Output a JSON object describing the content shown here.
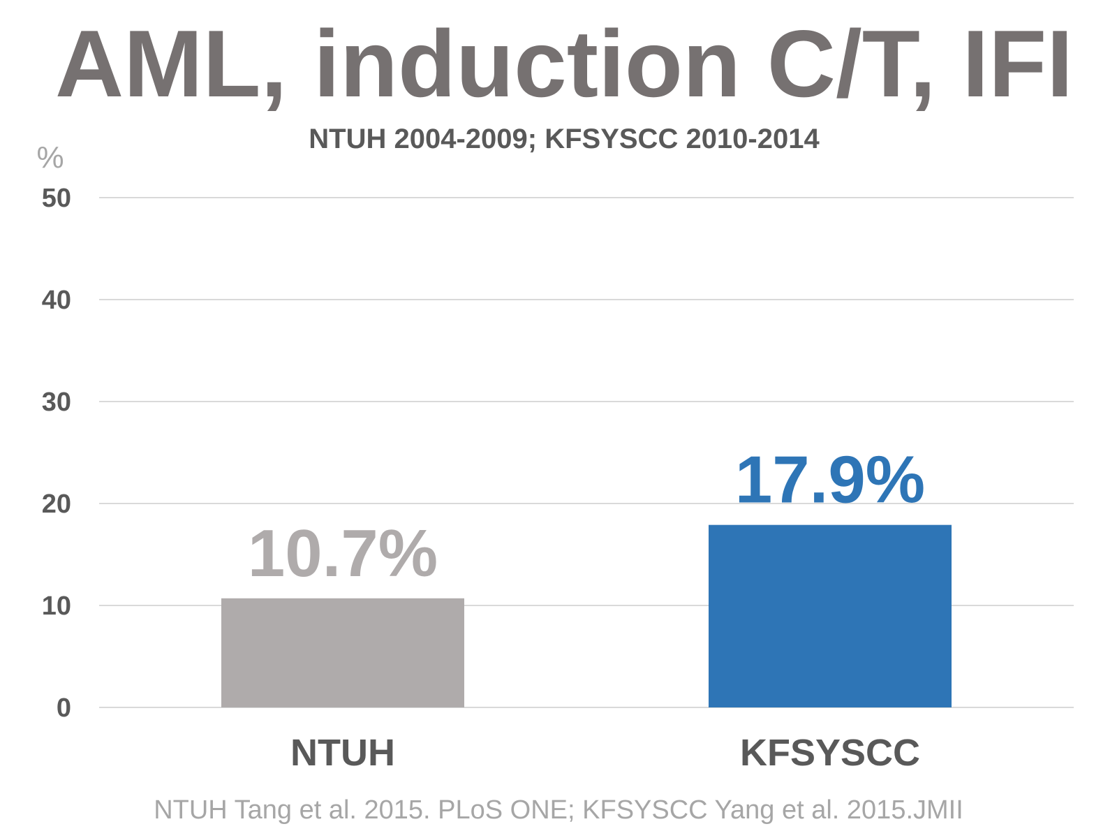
{
  "chart_data": {
    "type": "bar",
    "title": "AML, induction C/T, IFI",
    "subtitle": "NTUH 2004-2009; KFSYSCC 2010-2014",
    "ylabel": "%",
    "xlabel": "",
    "categories": [
      "NTUH",
      "KFSYSCC"
    ],
    "values": [
      10.7,
      17.9
    ],
    "data_labels": [
      "10.7%",
      "17.9%"
    ],
    "bar_colors": [
      "#afabab",
      "#2e75b6"
    ],
    "ylim": [
      0,
      50
    ],
    "yticks": [
      0,
      10,
      20,
      30,
      40,
      50
    ],
    "ytick_labels": [
      "0",
      "10",
      "20",
      "30",
      "40",
      "50"
    ],
    "grid": true,
    "legend": "none",
    "source": "NTUH Tang et al. 2015. PLoS ONE; KFSYSCC Yang et al. 2015.JMII"
  }
}
